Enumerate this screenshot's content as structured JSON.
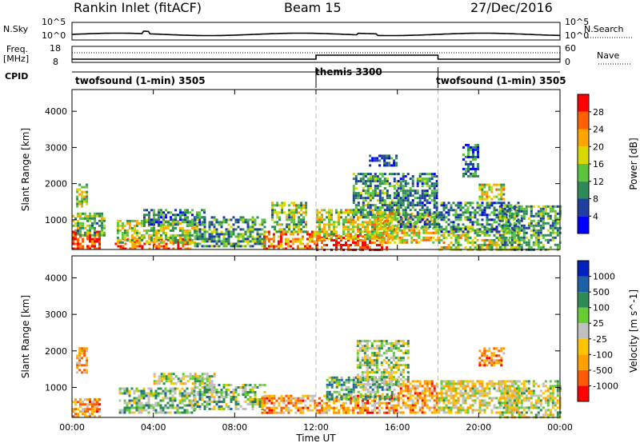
{
  "header": {
    "station": "Rankin Inlet (fitACF)",
    "beam": "Beam 15",
    "date": "27/Dec/2016"
  },
  "sky_panel": {
    "left_label": "N.Sky",
    "right_label": "N.Search",
    "ticks": [
      "10^5",
      "10^0"
    ]
  },
  "freq_panel": {
    "left_label_line1": "Freq.",
    "left_label_line2": "[MHz]",
    "right_label": "Nave",
    "left_ticks": [
      "18",
      "8"
    ],
    "right_ticks": [
      "60",
      "0"
    ]
  },
  "cpid_panel": {
    "label": "CPID",
    "segments": [
      {
        "text": "twofsound (1-min) 3505",
        "start_hour": 0
      },
      {
        "text": "themis 3300",
        "start_hour": 12
      },
      {
        "text": "twofsound (1-min) 3505",
        "start_hour": 18
      }
    ]
  },
  "colors": {
    "power": [
      "#0000ff",
      "#1f3fa0",
      "#2e8b57",
      "#5cc33e",
      "#d8d800",
      "#ffa500",
      "#ff6000",
      "#ff0000"
    ],
    "velocity": [
      "#ff0000",
      "#ff5a00",
      "#ffa000",
      "#ffc300",
      "#c0c0c0",
      "#66cc33",
      "#2e8b57",
      "#1e60a8",
      "#0020c0"
    ],
    "ground_scatter": "#a9a9a9"
  },
  "chart_data": [
    {
      "type": "heatmap",
      "name": "power",
      "ylabel": "Slant Range [km]",
      "ylim": [
        180,
        4600
      ],
      "yticks": [
        1000,
        2000,
        3000,
        4000
      ],
      "xlim": [
        0,
        24
      ],
      "colorbar_label": "Power [dB]",
      "colorbar_ticks": [
        "4",
        "8",
        "12",
        "16",
        "20",
        "24",
        "28"
      ],
      "colorbar_range": [
        0,
        32
      ],
      "scatter_regions": [
        {
          "x": [
            0.0,
            1.4
          ],
          "y": [
            180,
            700
          ],
          "level": 0.9
        },
        {
          "x": [
            0.0,
            1.6
          ],
          "y": [
            600,
            1200
          ],
          "level": 0.45
        },
        {
          "x": [
            0.2,
            0.7
          ],
          "y": [
            1400,
            2000
          ],
          "level": 0.5
        },
        {
          "x": [
            2.1,
            5.8
          ],
          "y": [
            180,
            500
          ],
          "level": 0.85
        },
        {
          "x": [
            2.2,
            6.2
          ],
          "y": [
            400,
            1000
          ],
          "level": 0.5
        },
        {
          "x": [
            3.5,
            6.5
          ],
          "y": [
            900,
            1300
          ],
          "level": 0.3
        },
        {
          "x": [
            6.0,
            9.5
          ],
          "y": [
            300,
            1100
          ],
          "level": 0.35
        },
        {
          "x": [
            9.4,
            12.0
          ],
          "y": [
            200,
            700
          ],
          "level": 0.75
        },
        {
          "x": [
            9.8,
            11.5
          ],
          "y": [
            700,
            1500
          ],
          "level": 0.45
        },
        {
          "x": [
            12.0,
            15.5
          ],
          "y": [
            180,
            600
          ],
          "level": 0.9
        },
        {
          "x": [
            12.0,
            16.0
          ],
          "y": [
            500,
            1300
          ],
          "level": 0.55
        },
        {
          "x": [
            13.8,
            16.0
          ],
          "y": [
            1100,
            2300
          ],
          "level": 0.35
        },
        {
          "x": [
            15.0,
            18.0
          ],
          "y": [
            400,
            1200
          ],
          "level": 0.6
        },
        {
          "x": [
            16.0,
            18.0
          ],
          "y": [
            800,
            2300
          ],
          "level": 0.3
        },
        {
          "x": [
            18.0,
            22.0
          ],
          "y": [
            180,
            800
          ],
          "level": 0.55
        },
        {
          "x": [
            18.0,
            22.0
          ],
          "y": [
            700,
            1500
          ],
          "level": 0.3
        },
        {
          "x": [
            20.0,
            21.2
          ],
          "y": [
            1600,
            2000
          ],
          "level": 0.55
        },
        {
          "x": [
            21.0,
            24.0
          ],
          "y": [
            180,
            1400
          ],
          "level": 0.35
        },
        {
          "x": [
            14.6,
            16.0
          ],
          "y": [
            2500,
            2800
          ],
          "level": 0.2
        },
        {
          "x": [
            19.2,
            20.0
          ],
          "y": [
            2200,
            3100
          ],
          "level": 0.2
        }
      ]
    },
    {
      "type": "heatmap",
      "name": "velocity",
      "xlabel": "Time UT",
      "ylabel": "Slant Range [km]",
      "ylim": [
        180,
        4600
      ],
      "yticks": [
        1000,
        2000,
        3000,
        4000
      ],
      "xlim": [
        0,
        24
      ],
      "xtick_labels": [
        "00:00",
        "04:00",
        "08:00",
        "12:00",
        "16:00",
        "20:00",
        "00:00"
      ],
      "colorbar_label": "Velocity [m s^-1]",
      "colorbar_ticks": [
        "-1000",
        "-500",
        "-100",
        "-25",
        "25",
        "100",
        "500",
        "1000"
      ],
      "scatter_regions": [
        {
          "x": [
            0.0,
            1.4
          ],
          "y": [
            180,
            700
          ],
          "level": 0.3
        },
        {
          "x": [
            0.2,
            0.7
          ],
          "y": [
            1400,
            2100
          ],
          "level": 0.35
        },
        {
          "x": [
            2.3,
            6.0
          ],
          "y": [
            300,
            1000
          ],
          "level": 0.6
        },
        {
          "x": [
            4.0,
            7.0
          ],
          "y": [
            1100,
            1400
          ],
          "level": 0.5
        },
        {
          "x": [
            6.0,
            9.5
          ],
          "y": [
            400,
            1100
          ],
          "level": 0.6
        },
        {
          "x": [
            9.3,
            12.0
          ],
          "y": [
            300,
            800
          ],
          "level": 0.3
        },
        {
          "x": [
            12.0,
            16.0
          ],
          "y": [
            300,
            800
          ],
          "level": 0.3
        },
        {
          "x": [
            12.5,
            16.0
          ],
          "y": [
            700,
            1300
          ],
          "level": 0.65
        },
        {
          "x": [
            14.0,
            16.5
          ],
          "y": [
            1100,
            2300
          ],
          "level": 0.55
        },
        {
          "x": [
            16.0,
            18.0
          ],
          "y": [
            300,
            1200
          ],
          "level": 0.3
        },
        {
          "x": [
            18.0,
            22.0
          ],
          "y": [
            300,
            1200
          ],
          "level": 0.45
        },
        {
          "x": [
            20.0,
            21.2
          ],
          "y": [
            1600,
            2100
          ],
          "level": 0.3
        },
        {
          "x": [
            21.0,
            24.0
          ],
          "y": [
            180,
            1200
          ],
          "level": 0.5
        }
      ]
    }
  ],
  "time_axis": {
    "xlabel": "Time UT",
    "tick_labels": [
      "00:00",
      "04:00",
      "08:00",
      "12:00",
      "16:00",
      "20:00",
      "00:00"
    ]
  }
}
